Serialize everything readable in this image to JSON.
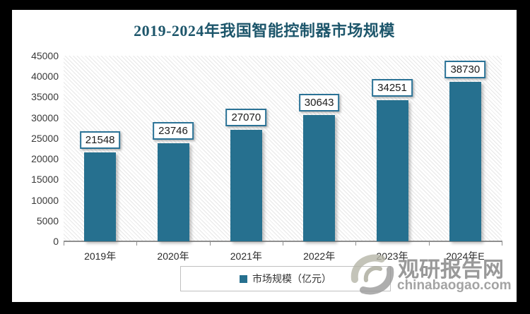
{
  "chart_data": {
    "type": "bar",
    "title": "2019-2024年我国智能控制器市场规模",
    "categories": [
      "2019年",
      "2020年",
      "2021年",
      "2022年",
      "2023年",
      "2024年E"
    ],
    "values": [
      21548,
      23746,
      27070,
      30643,
      34251,
      38730
    ],
    "series_name": "市场规模（亿元）",
    "data_labels_visible": true,
    "ylim": [
      0,
      45000
    ],
    "ytick_step": 5000,
    "yticks": [
      45000,
      40000,
      35000,
      30000,
      25000,
      20000,
      15000,
      10000,
      5000,
      0
    ],
    "grid": false,
    "legend_position": "bottom",
    "colors": {
      "bar": "#26708f",
      "title_text": "#1d566b",
      "value_label_border": "#2a7296",
      "axis_line": "#8f8f8f",
      "plot_hatch_line": "#e7e7e7"
    }
  },
  "legend": {
    "label": "市场规模（亿元）",
    "marker_color": "#26708f"
  },
  "watermark": {
    "brand": "观研报告网",
    "domain": "chinabaogao.com"
  }
}
